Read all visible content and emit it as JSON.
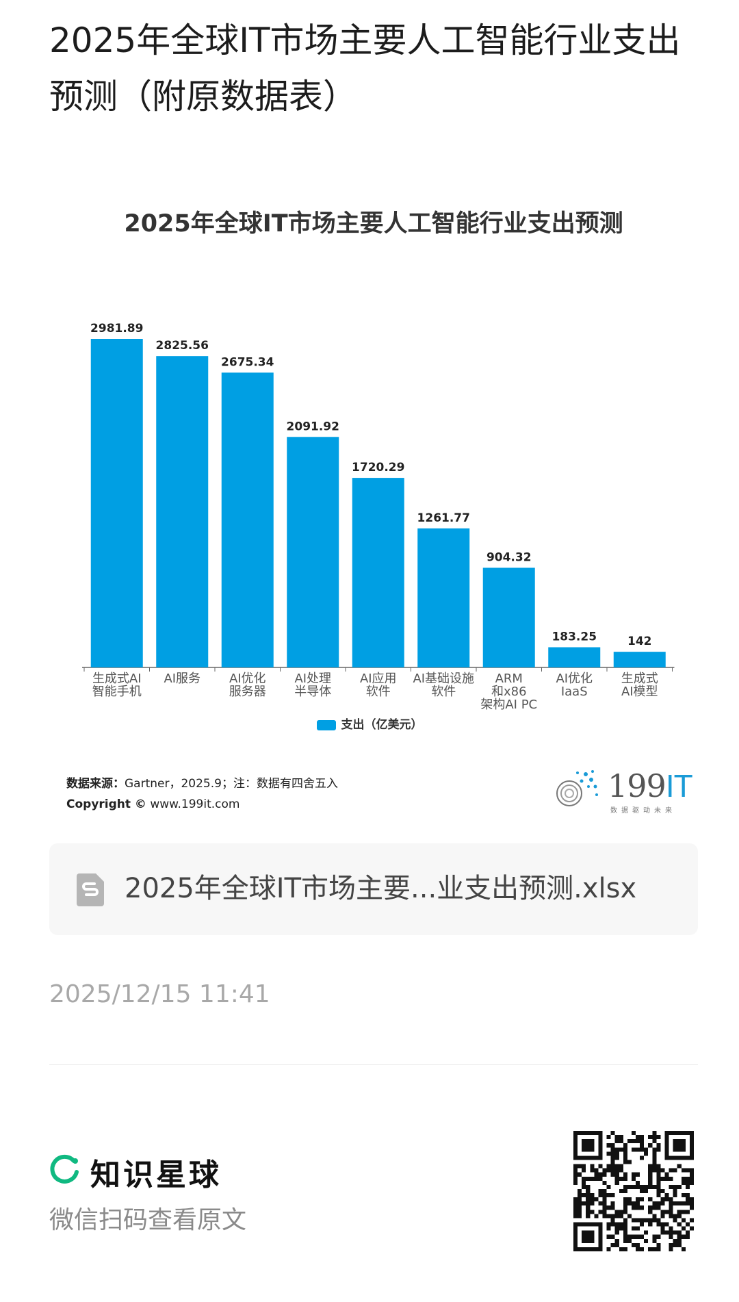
{
  "page": {
    "title": "2025年全球IT市场主要人工智能行业支出预测（附原数据表）"
  },
  "chart_data": {
    "type": "bar",
    "title": "2025年全球IT市场主要人工智能行业支出预测",
    "categories": [
      [
        "生成式AI",
        "智能手机"
      ],
      [
        "AI服务"
      ],
      [
        "AI优化",
        "服务器"
      ],
      [
        "AI处理",
        "半导体"
      ],
      [
        "AI应用",
        "软件"
      ],
      [
        "AI基础设施",
        "软件"
      ],
      [
        "ARM",
        "和x86",
        "架构AI PC"
      ],
      [
        "AI优化",
        "IaaS"
      ],
      [
        "生成式",
        "AI模型"
      ]
    ],
    "series": [
      {
        "name": "支出（亿美元）",
        "values": [
          2981.89,
          2825.56,
          2675.34,
          2091.92,
          1720.29,
          1261.77,
          904.32,
          183.25,
          142
        ]
      }
    ],
    "value_labels": [
      "2981.89",
      "2825.56",
      "2675.34",
      "2091.92",
      "1720.29",
      "1261.77",
      "904.32",
      "183.25",
      "142"
    ],
    "ylim": [
      0,
      3050
    ],
    "grid": false,
    "legend": "bottom",
    "bar_color": "#009fe3"
  },
  "source": {
    "label": "数据来源：",
    "text": "Gartner，2025.9；注：数据有四舍五入",
    "copyright_label": "Copyright ©",
    "copyright_site": "www.199it.com"
  },
  "logo": {
    "text_main": "199",
    "text_accent": "IT",
    "tagline": "数据驱动未来"
  },
  "attachment": {
    "icon": "spreadsheet-file-icon",
    "filename": "2025年全球IT市场主要...业支出预测.xlsx"
  },
  "timestamp": "2025/12/15 11:41",
  "footer": {
    "brand_icon": "planet-ring-icon",
    "brand_name": "知识星球",
    "scan_text": "微信扫码查看原文",
    "qr_icon": "qr-code-icon"
  },
  "colors": {
    "accent": "#009fe3",
    "brand_green": "#10b981"
  }
}
